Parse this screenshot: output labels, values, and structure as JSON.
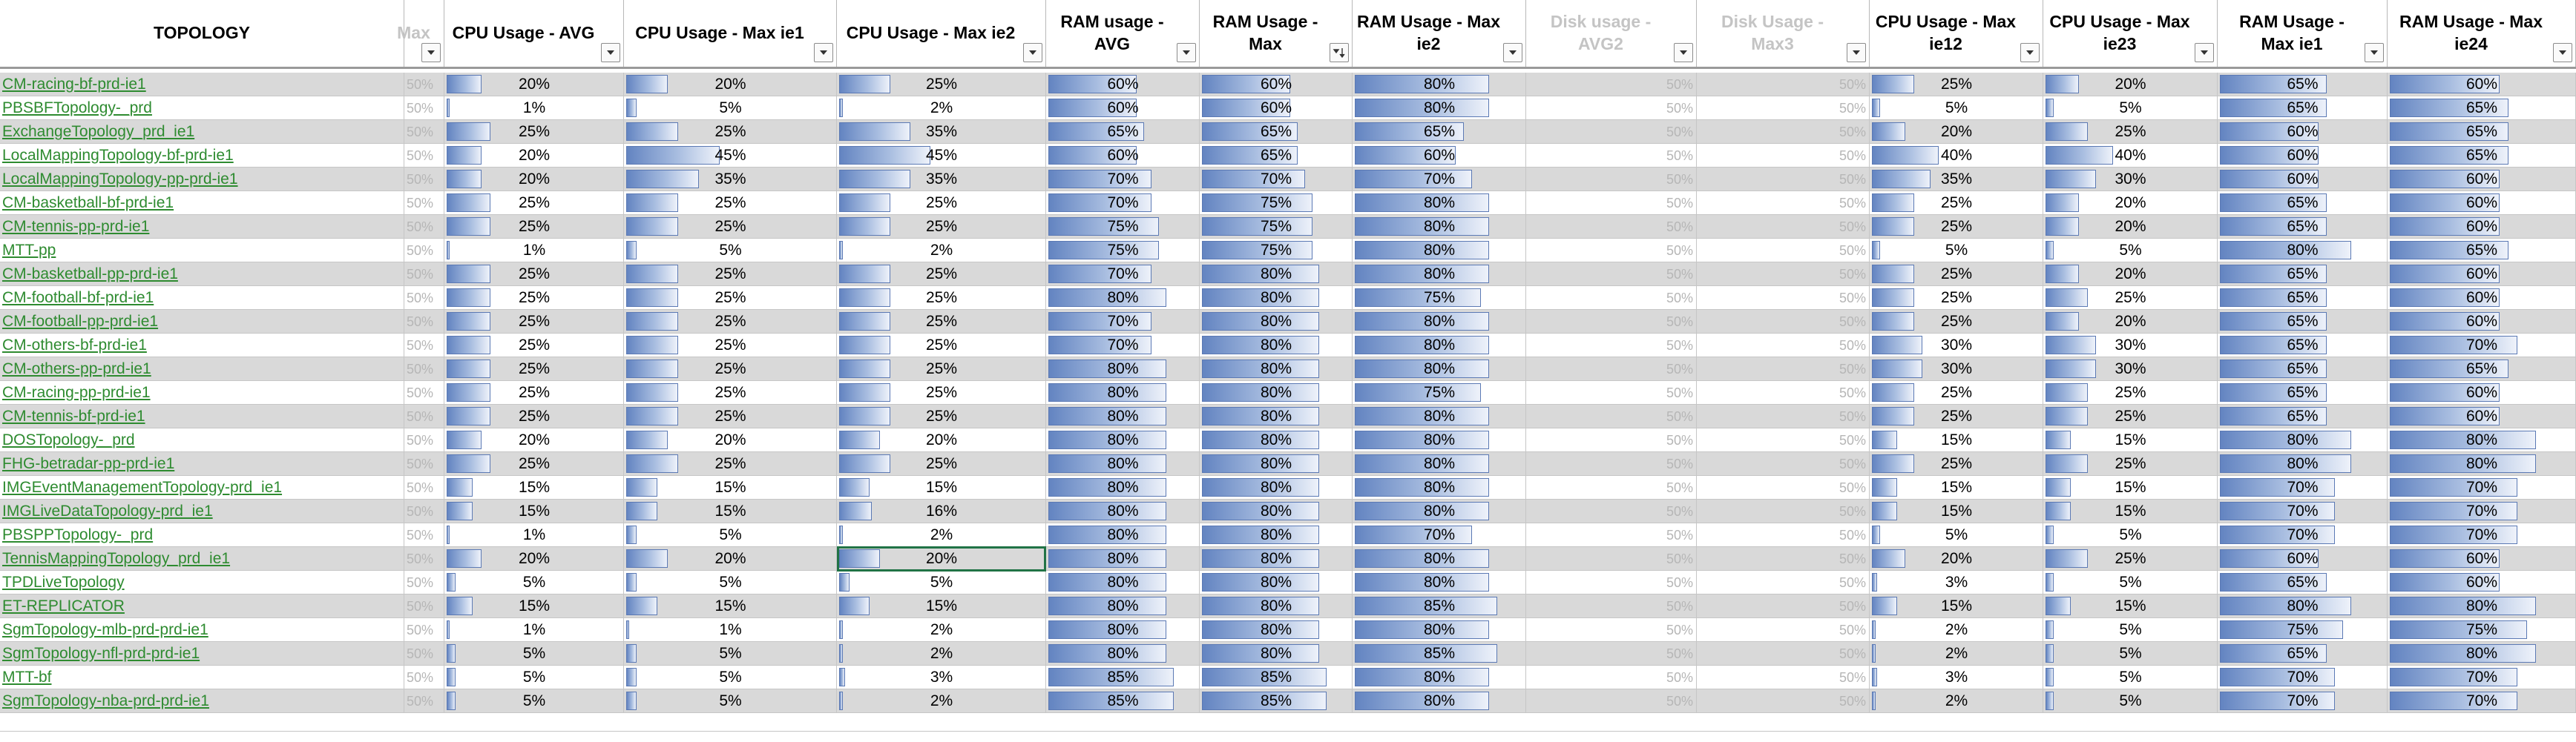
{
  "headers": [
    {
      "label": "TOPOLOGY",
      "faded": false,
      "filter": false
    },
    {
      "label": "Max",
      "faded": true,
      "filter": true,
      "filter_icon": "dropdown-arrow"
    },
    {
      "label": "CPU Usage - AVG",
      "faded": false,
      "filter": true,
      "filter_icon": "dropdown-arrow"
    },
    {
      "label": "CPU Usage - Max ie1",
      "faded": false,
      "filter": true,
      "filter_icon": "dropdown-arrow"
    },
    {
      "label": "CPU Usage - Max ie2",
      "faded": false,
      "filter": true,
      "filter_icon": "dropdown-arrow"
    },
    {
      "label": "RAM usage - AVG",
      "faded": false,
      "filter": true,
      "filter_icon": "dropdown-arrow"
    },
    {
      "label": "RAM Usage - Max",
      "faded": false,
      "filter": true,
      "filter_icon": "sort-descending"
    },
    {
      "label": "RAM Usage - Max ie2",
      "faded": false,
      "filter": true,
      "filter_icon": "dropdown-arrow"
    },
    {
      "label": "Disk usage - AVG2",
      "faded": true,
      "filter": true,
      "filter_icon": "dropdown-arrow"
    },
    {
      "label": "Disk Usage - Max3",
      "faded": true,
      "filter": true,
      "filter_icon": "dropdown-arrow"
    },
    {
      "label": "CPU Usage - Max ie12",
      "faded": false,
      "filter": true,
      "filter_icon": "dropdown-arrow"
    },
    {
      "label": "CPU Usage - Max ie23",
      "faded": false,
      "filter": true,
      "filter_icon": "dropdown-arrow"
    },
    {
      "label": "RAM Usage - Max ie1",
      "faded": false,
      "filter": true,
      "filter_icon": "dropdown-arrow"
    },
    {
      "label": "RAM Usage - Max ie24",
      "faded": false,
      "filter": true,
      "filter_icon": "dropdown-arrow"
    }
  ],
  "ghost_value": "50%",
  "selected_cell": {
    "row": 21,
    "col": 4
  },
  "colors": {
    "bar_fill": "#6384c1",
    "bar_border": "#5b79b4",
    "link": "#2e8b30",
    "selection": "#217346",
    "row_gray": "#d9d9d9"
  },
  "rows": [
    {
      "name": "CM-racing-bf-prd-ie1",
      "white": false,
      "v": [
        "20%",
        "20%",
        "25%",
        "60%",
        "60%",
        "80%",
        "25%",
        "20%",
        "65%",
        "60%"
      ]
    },
    {
      "name": "PBSBFTopology-_prd",
      "white": true,
      "v": [
        "1%",
        "5%",
        "2%",
        "60%",
        "60%",
        "80%",
        "5%",
        "5%",
        "65%",
        "65%"
      ]
    },
    {
      "name": "ExchangeTopology_prd_ie1",
      "white": false,
      "v": [
        "25%",
        "25%",
        "35%",
        "65%",
        "65%",
        "65%",
        "20%",
        "25%",
        "60%",
        "65%"
      ]
    },
    {
      "name": "LocalMappingTopology-bf-prd-ie1",
      "white": true,
      "v": [
        "20%",
        "45%",
        "45%",
        "60%",
        "65%",
        "60%",
        "40%",
        "40%",
        "60%",
        "65%"
      ]
    },
    {
      "name": "LocalMappingTopology-pp-prd-ie1",
      "white": false,
      "v": [
        "20%",
        "35%",
        "35%",
        "70%",
        "70%",
        "70%",
        "35%",
        "30%",
        "60%",
        "60%"
      ]
    },
    {
      "name": "CM-basketball-bf-prd-ie1",
      "white": true,
      "v": [
        "25%",
        "25%",
        "25%",
        "70%",
        "75%",
        "80%",
        "25%",
        "20%",
        "65%",
        "60%"
      ]
    },
    {
      "name": "CM-tennis-pp-prd-ie1",
      "white": false,
      "v": [
        "25%",
        "25%",
        "25%",
        "75%",
        "75%",
        "80%",
        "25%",
        "20%",
        "65%",
        "60%"
      ]
    },
    {
      "name": "MTT-pp",
      "white": true,
      "v": [
        "1%",
        "5%",
        "2%",
        "75%",
        "75%",
        "80%",
        "5%",
        "5%",
        "80%",
        "65%"
      ]
    },
    {
      "name": "CM-basketball-pp-prd-ie1",
      "white": false,
      "v": [
        "25%",
        "25%",
        "25%",
        "70%",
        "80%",
        "80%",
        "25%",
        "20%",
        "65%",
        "60%"
      ]
    },
    {
      "name": "CM-football-bf-prd-ie1",
      "white": true,
      "v": [
        "25%",
        "25%",
        "25%",
        "80%",
        "80%",
        "75%",
        "25%",
        "25%",
        "65%",
        "60%"
      ]
    },
    {
      "name": "CM-football-pp-prd-ie1",
      "white": false,
      "v": [
        "25%",
        "25%",
        "25%",
        "70%",
        "80%",
        "80%",
        "25%",
        "20%",
        "65%",
        "60%"
      ]
    },
    {
      "name": "CM-others-bf-prd-ie1",
      "white": true,
      "v": [
        "25%",
        "25%",
        "25%",
        "70%",
        "80%",
        "80%",
        "30%",
        "30%",
        "65%",
        "70%"
      ]
    },
    {
      "name": "CM-others-pp-prd-ie1",
      "white": false,
      "v": [
        "25%",
        "25%",
        "25%",
        "80%",
        "80%",
        "80%",
        "30%",
        "30%",
        "65%",
        "65%"
      ]
    },
    {
      "name": "CM-racing-pp-prd-ie1",
      "white": true,
      "v": [
        "25%",
        "25%",
        "25%",
        "80%",
        "80%",
        "75%",
        "25%",
        "25%",
        "65%",
        "60%"
      ]
    },
    {
      "name": "CM-tennis-bf-prd-ie1",
      "white": false,
      "v": [
        "25%",
        "25%",
        "25%",
        "80%",
        "80%",
        "80%",
        "25%",
        "25%",
        "65%",
        "60%"
      ]
    },
    {
      "name": "DOSTopology-_prd",
      "white": true,
      "v": [
        "20%",
        "20%",
        "20%",
        "80%",
        "80%",
        "80%",
        "15%",
        "15%",
        "80%",
        "80%"
      ]
    },
    {
      "name": "FHG-betradar-pp-prd-ie1",
      "white": false,
      "v": [
        "25%",
        "25%",
        "25%",
        "80%",
        "80%",
        "80%",
        "25%",
        "25%",
        "80%",
        "80%"
      ]
    },
    {
      "name": "IMGEventManagementTopology-prd_ie1",
      "white": true,
      "v": [
        "15%",
        "15%",
        "15%",
        "80%",
        "80%",
        "80%",
        "15%",
        "15%",
        "70%",
        "70%"
      ]
    },
    {
      "name": "IMGLiveDataTopology-prd_ie1",
      "white": false,
      "v": [
        "15%",
        "15%",
        "16%",
        "80%",
        "80%",
        "80%",
        "15%",
        "15%",
        "70%",
        "70%"
      ]
    },
    {
      "name": "PBSPPTopology-_prd",
      "white": true,
      "v": [
        "1%",
        "5%",
        "2%",
        "80%",
        "80%",
        "70%",
        "5%",
        "5%",
        "70%",
        "70%"
      ]
    },
    {
      "name": "TennisMappingTopology_prd_ie1",
      "white": false,
      "v": [
        "20%",
        "20%",
        "20%",
        "80%",
        "80%",
        "80%",
        "20%",
        "25%",
        "60%",
        "60%"
      ]
    },
    {
      "name": "TPDLiveTopology",
      "white": true,
      "v": [
        "5%",
        "5%",
        "5%",
        "80%",
        "80%",
        "80%",
        "3%",
        "5%",
        "65%",
        "60%"
      ]
    },
    {
      "name": "ET-REPLICATOR",
      "white": false,
      "v": [
        "15%",
        "15%",
        "15%",
        "80%",
        "80%",
        "85%",
        "15%",
        "15%",
        "80%",
        "80%"
      ]
    },
    {
      "name": "SgmTopology-mlb-prd-prd-ie1",
      "white": true,
      "v": [
        "1%",
        "1%",
        "2%",
        "80%",
        "80%",
        "80%",
        "2%",
        "5%",
        "75%",
        "75%"
      ]
    },
    {
      "name": "SgmTopology-nfl-prd-prd-ie1",
      "white": false,
      "v": [
        "5%",
        "5%",
        "2%",
        "80%",
        "80%",
        "85%",
        "2%",
        "5%",
        "65%",
        "80%"
      ]
    },
    {
      "name": "MTT-bf",
      "white": true,
      "v": [
        "5%",
        "5%",
        "3%",
        "85%",
        "85%",
        "80%",
        "3%",
        "5%",
        "70%",
        "70%"
      ]
    },
    {
      "name": "SgmTopology-nba-prd-prd-ie1",
      "white": false,
      "v": [
        "5%",
        "5%",
        "2%",
        "85%",
        "85%",
        "80%",
        "2%",
        "5%",
        "70%",
        "70%"
      ]
    }
  ]
}
